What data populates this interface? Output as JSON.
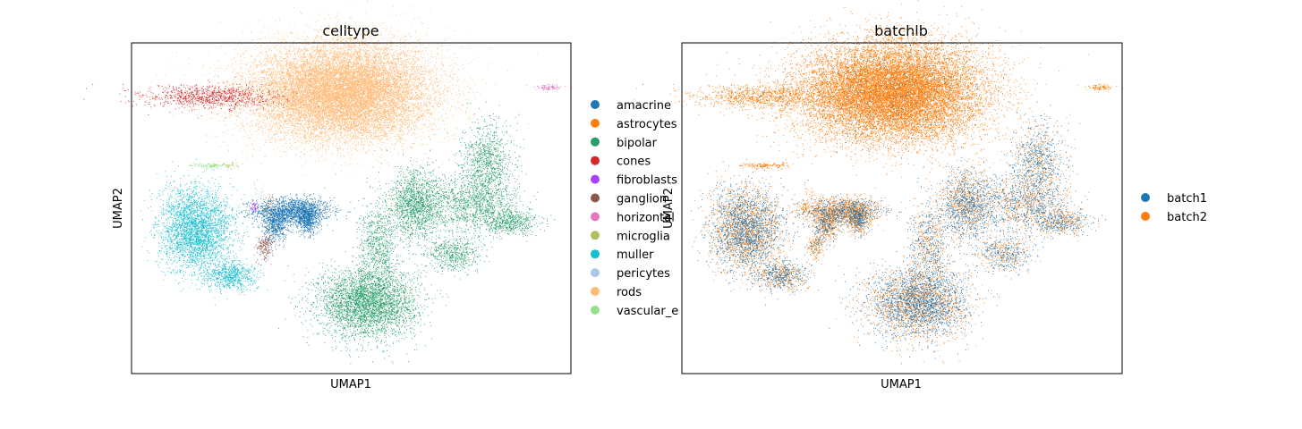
{
  "chart_data": [
    {
      "type": "scatter",
      "title": "celltype",
      "xlabel": "UMAP1",
      "ylabel": "UMAP2",
      "grid": false,
      "legend_placement": "right-outside",
      "series": [
        {
          "name": "amacrine",
          "color": "#1f77b4",
          "points": 2600,
          "clusters": [
            [
              -0.5,
              0.15,
              1.8,
              0.55,
              0.6
            ],
            [
              -1.3,
              -0.4,
              0.55,
              0.7,
              0.2
            ],
            [
              0.2,
              -0.2,
              0.5,
              0.6,
              0.2
            ]
          ]
        },
        {
          "name": "astrocytes",
          "color": "#ff7f0e",
          "points": 20,
          "clusters": [
            [
              -1.6,
              0.5,
              0.4,
              0.4,
              1
            ]
          ]
        },
        {
          "name": "bipolar",
          "color": "#279e68",
          "points": 9000,
          "clusters": [
            [
              3.0,
              -3.6,
              2.3,
              1.4,
              0.4
            ],
            [
              3.5,
              -1.2,
              0.9,
              1.6,
              0.08
            ],
            [
              5.3,
              0.4,
              1.3,
              1.4,
              0.17
            ],
            [
              8.0,
              0.5,
              2.0,
              1.2,
              0.13
            ],
            [
              8.6,
              2.2,
              1.2,
              1.6,
              0.1
            ],
            [
              9.6,
              -0.3,
              1.4,
              0.5,
              0.06
            ],
            [
              7.0,
              -1.6,
              1.3,
              0.7,
              0.06
            ]
          ]
        },
        {
          "name": "cones",
          "color": "#d62728",
          "points": 1000,
          "clusters": [
            [
              -4.3,
              4.8,
              3.2,
              0.5,
              1
            ]
          ]
        },
        {
          "name": "fibroblasts",
          "color": "#aa40fc",
          "points": 40,
          "clusters": [
            [
              -2.3,
              0.3,
              0.18,
              0.18,
              1
            ]
          ]
        },
        {
          "name": "ganglion",
          "color": "#8c564b",
          "points": 180,
          "clusters": [
            [
              -1.8,
              -1.3,
              0.4,
              0.55,
              1
            ]
          ]
        },
        {
          "name": "horizontal",
          "color": "#e377c2",
          "points": 90,
          "clusters": [
            [
              11.5,
              5.2,
              0.6,
              0.14,
              1
            ]
          ]
        },
        {
          "name": "microglia",
          "color": "#b5bd61",
          "points": 30,
          "clusters": [
            [
              -3.4,
              2.0,
              0.5,
              0.2,
              1
            ]
          ]
        },
        {
          "name": "muller",
          "color": "#17becf",
          "points": 3800,
          "clusters": [
            [
              -5.0,
              -0.6,
              1.7,
              1.7,
              0.82
            ],
            [
              -3.4,
              -2.5,
              1.2,
              0.6,
              0.18
            ]
          ]
        },
        {
          "name": "pericytes",
          "color": "#aec7e8",
          "points": 20,
          "clusters": [
            [
              -2.0,
              0.9,
              0.4,
              0.4,
              1
            ]
          ]
        },
        {
          "name": "rods",
          "color": "#ffbb78",
          "points": 16000,
          "clusters": [
            [
              1.8,
              5.0,
              4.2,
              2.0,
              1
            ]
          ]
        },
        {
          "name": "vascular_endothelium",
          "color": "#98df8a",
          "points": 120,
          "clusters": [
            [
              -4.2,
              2.0,
              1.0,
              0.12,
              1
            ]
          ]
        }
      ],
      "legend_labels": [
        "amacrine",
        "astrocytes",
        "bipolar",
        "cones",
        "fibroblasts",
        "ganglion",
        "horizontal",
        "microglia",
        "muller",
        "pericytes",
        "rods",
        "vascular_e"
      ]
    },
    {
      "type": "scatter",
      "title": "batchlb",
      "xlabel": "UMAP1",
      "ylabel": "UMAP2",
      "grid": false,
      "legend_placement": "right-outside",
      "series": [
        {
          "name": "batch1",
          "color": "#1f77b4"
        },
        {
          "name": "batch2",
          "color": "#ff7f0e"
        }
      ],
      "legend_labels": [
        "batch1",
        "batch2"
      ]
    }
  ]
}
